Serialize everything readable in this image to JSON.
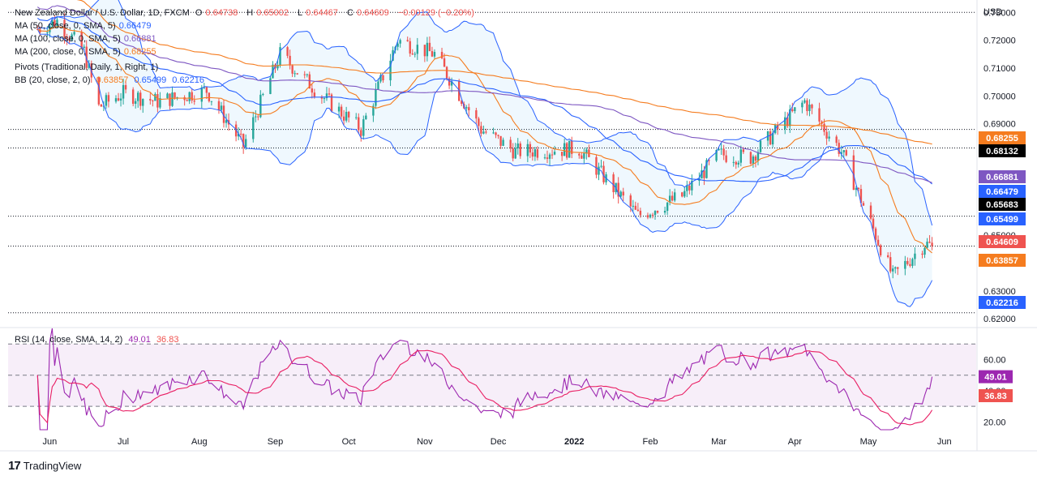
{
  "header": {
    "title": "New Zealand Dollar / U.S. Dollar, 1D, FXCM",
    "o_label": "O",
    "o_value": "0.64738",
    "h_label": "H",
    "h_value": "0.65002",
    "l_label": "L",
    "l_value": "0.64467",
    "c_label": "C",
    "c_value": "0.64609",
    "change": "−0.00129 (−0.20%)"
  },
  "legend": {
    "ma50": {
      "label": "MA (50, close, 0, SMA, 5)",
      "value": "0.66479"
    },
    "ma100": {
      "label": "MA (100, close, 0, SMA, 5)",
      "value": "0.66881"
    },
    "ma200": {
      "label": "MA (200, close, 0, SMA, 5)",
      "value": "0.68255"
    },
    "pivots": {
      "label": "Pivots (Traditional, Daily, 1, Right, 1)"
    },
    "bb": {
      "label": "BB (20, close, 2, 0)",
      "v1": "0.63857",
      "v2": "0.65499",
      "v3": "0.62216"
    },
    "rsi": {
      "label": "RSI (14, close, SMA, 14, 2)",
      "v1": "49.01",
      "v2": "36.83"
    }
  },
  "price_axis": {
    "currency": "USD",
    "ticks": [
      "0.73000",
      "0.72000",
      "0.71000",
      "0.70000",
      "0.69000",
      "0.66000",
      "0.65000",
      "0.64000",
      "0.63000",
      "0.62000"
    ]
  },
  "rsi_axis": {
    "ticks": [
      "60.00",
      "40.00",
      "20.00"
    ]
  },
  "price_tags": [
    {
      "text": "0.68255",
      "color": "#f57c1f"
    },
    {
      "text": "0.68132",
      "color": "#000000"
    },
    {
      "text": "0.66881",
      "color": "#7e57c2"
    },
    {
      "text": "0.66479",
      "color": "#2962ff"
    },
    {
      "text": "0.65683",
      "color": "#000000"
    },
    {
      "text": "0.65499",
      "color": "#2962ff"
    },
    {
      "text": "0.64609",
      "color": "#ef5350"
    },
    {
      "text": "0.63857",
      "color": "#f57c1f"
    },
    {
      "text": "0.62216",
      "color": "#2962ff"
    }
  ],
  "rsi_tags": [
    {
      "text": "49.01",
      "color": "#9c27b0"
    },
    {
      "text": "36.83",
      "color": "#ef5350"
    }
  ],
  "time_axis": {
    "labels": [
      "Jun",
      "Jul",
      "Aug",
      "Sep",
      "Oct",
      "Nov",
      "Dec",
      "2022",
      "Feb",
      "Mar",
      "Apr",
      "May",
      "Jun"
    ]
  },
  "footer": {
    "brand": "TradingView"
  },
  "colors": {
    "up": "#26a69a",
    "down": "#ef5350",
    "ma50": "#2962ff",
    "ma100": "#7e57c2",
    "ma200": "#f57c1f",
    "bb_basis": "#f57c1f",
    "bb_band": "#2962ff",
    "rsi": "#9c27b0",
    "rsi_ma": "#e91e63"
  },
  "chart_data": [
    {
      "type": "candlestick",
      "title": "New Zealand Dollar / U.S. Dollar, 1D, FXCM",
      "ylabel": "USD",
      "ylim": [
        0.618,
        0.733
      ],
      "x_months": [
        "Jun",
        "Jul",
        "Aug",
        "Sep",
        "Oct",
        "Nov",
        "Dec",
        "2022",
        "Feb",
        "Mar",
        "Apr",
        "May",
        "Jun"
      ],
      "ohlc_keypoints": [
        {
          "date": "2021-05-27",
          "close": 0.724
        },
        {
          "date": "2021-06-04",
          "close": 0.727
        },
        {
          "date": "2021-06-15",
          "close": 0.716
        },
        {
          "date": "2021-06-21",
          "close": 0.696
        },
        {
          "date": "2021-07-01",
          "close": 0.701
        },
        {
          "date": "2021-07-15",
          "close": 0.698
        },
        {
          "date": "2021-08-04",
          "close": 0.702
        },
        {
          "date": "2021-08-19",
          "close": 0.682
        },
        {
          "date": "2021-09-03",
          "close": 0.715
        },
        {
          "date": "2021-09-20",
          "close": 0.7
        },
        {
          "date": "2021-10-06",
          "close": 0.688
        },
        {
          "date": "2021-10-21",
          "close": 0.72
        },
        {
          "date": "2021-11-05",
          "close": 0.715
        },
        {
          "date": "2021-11-24",
          "close": 0.688
        },
        {
          "date": "2021-12-08",
          "close": 0.68
        },
        {
          "date": "2022-01-03",
          "close": 0.681
        },
        {
          "date": "2022-01-27",
          "close": 0.657
        },
        {
          "date": "2022-02-14",
          "close": 0.664
        },
        {
          "date": "2022-03-01",
          "close": 0.679
        },
        {
          "date": "2022-03-14",
          "close": 0.678
        },
        {
          "date": "2022-04-05",
          "close": 0.698
        },
        {
          "date": "2022-04-20",
          "close": 0.68
        },
        {
          "date": "2022-05-11",
          "close": 0.635
        },
        {
          "date": "2022-05-24",
          "close": 0.647
        },
        {
          "date": "2022-05-27",
          "close": 0.6461
        }
      ],
      "series": [
        {
          "name": "MA (50, close, 0, SMA, 5)",
          "last": 0.66479
        },
        {
          "name": "MA (100, close, 0, SMA, 5)",
          "last": 0.66881
        },
        {
          "name": "MA (200, close, 0, SMA, 5)",
          "last": 0.68255
        },
        {
          "name": "BB (20, close, 2, 0)",
          "basis": 0.63857,
          "upper": 0.65499,
          "lower": 0.62216
        }
      ],
      "pivots": [
        0.68132,
        0.65683
      ]
    },
    {
      "type": "line",
      "title": "RSI (14, close, SMA, 14, 2)",
      "ylim": [
        15,
        80
      ],
      "bands": [
        30,
        50,
        70
      ],
      "series": [
        {
          "name": "RSI",
          "last": 49.01
        },
        {
          "name": "RSI MA",
          "last": 36.83
        }
      ]
    }
  ]
}
